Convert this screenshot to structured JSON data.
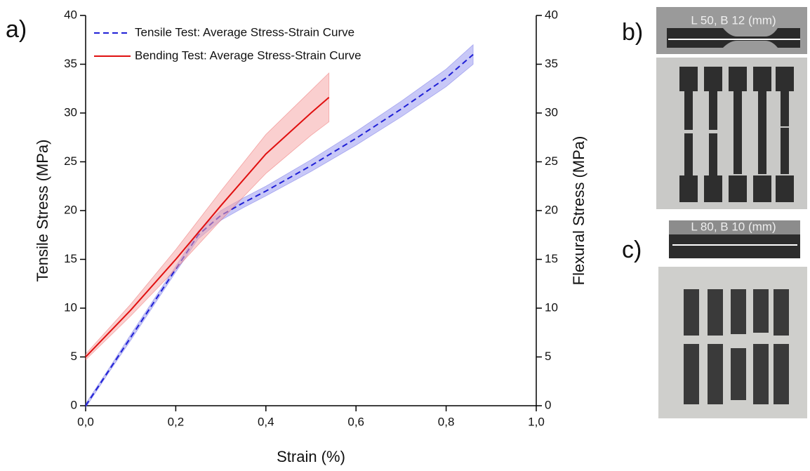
{
  "chart_data": {
    "type": "line",
    "x_label": "Strain (%)",
    "y_label": "Tensile Stress (MPa)",
    "y2_label": "Flexural Stress (MPa)",
    "xlim": [
      0,
      1
    ],
    "ylim": [
      0,
      40
    ],
    "y2lim": [
      0,
      40
    ],
    "xticks": [
      {
        "value": 0,
        "label": "0,0"
      },
      {
        "value": 0.2,
        "label": "0,2"
      },
      {
        "value": 0.4,
        "label": "0,4"
      },
      {
        "value": 0.6,
        "label": "0,6"
      },
      {
        "value": 0.8,
        "label": "0,8"
      },
      {
        "value": 1,
        "label": "1,0"
      }
    ],
    "yticks": [
      0,
      5,
      10,
      15,
      20,
      25,
      30,
      35,
      40
    ],
    "y2ticks": [
      0,
      5,
      10,
      15,
      20,
      25,
      30,
      35,
      40
    ],
    "legend": "upper left",
    "series": [
      {
        "name": "Tensile Test: Average Stress-Strain Curve",
        "color": "#1f1fd6",
        "dash": true,
        "band_color": "#9b9bf0",
        "x": [
          0,
          0.05,
          0.1,
          0.15,
          0.2,
          0.25,
          0.3,
          0.35,
          0.4,
          0.5,
          0.6,
          0.7,
          0.8,
          0.86
        ],
        "values": [
          0,
          3.5,
          7,
          10.5,
          14,
          17.5,
          19.5,
          20.8,
          22,
          24.6,
          27.4,
          30.4,
          33.6,
          36
        ],
        "errors": [
          0.2,
          0.2,
          0.3,
          0.3,
          0.3,
          0.4,
          0.5,
          0.5,
          0.5,
          0.6,
          0.7,
          0.8,
          0.9,
          1
        ]
      },
      {
        "name": "Bending Test: Average Stress-Strain Curve",
        "color": "#e01010",
        "dash": false,
        "band_color": "#f5a8a8",
        "axis": "y2",
        "x": [
          0,
          0.1,
          0.2,
          0.3,
          0.4,
          0.5,
          0.54
        ],
        "values": [
          5,
          9.8,
          15,
          20.5,
          25.8,
          30,
          31.6
        ],
        "errors": [
          0.3,
          0.6,
          1,
          1.5,
          2,
          2.3,
          2.5
        ]
      }
    ]
  },
  "panels": {
    "a": "a)",
    "b": "b)",
    "c": "c)",
    "b_dimension": "L 50, B 12 (mm)",
    "c_dimension": "L 80, B 10 (mm)"
  }
}
